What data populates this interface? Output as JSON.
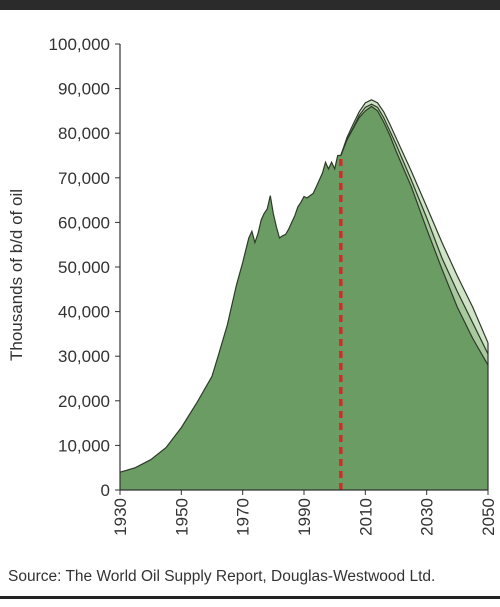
{
  "source_note": "Source: The World Oil Supply Report, Douglas-Westwood Ltd.",
  "colors": {
    "base_area": "#6a9c63",
    "upper_scenario": "#cfe3c6",
    "mid_scenario": "#a8c99d",
    "outline": "#2f3a2a",
    "dashed_marker": "#d42a2a",
    "axis": "#333333"
  },
  "chart_data": {
    "type": "area",
    "title": "",
    "xlabel": "",
    "ylabel": "Thousands of b/d of oil",
    "xlim": [
      1930,
      2050
    ],
    "ylim": [
      0,
      100000
    ],
    "x_ticks": [
      "1930",
      "1950",
      "1970",
      "1990",
      "2010",
      "2030",
      "2050"
    ],
    "y_ticks": [
      "0",
      "10,000",
      "20,000",
      "30,000",
      "40,000",
      "50,000",
      "60,000",
      "70,000",
      "80,000",
      "90,000",
      "100,000"
    ],
    "grid": false,
    "marker_line": {
      "x": 2002,
      "style": "dashed"
    },
    "series": [
      {
        "x": [
          1930,
          1935,
          1940,
          1945,
          1950,
          1955,
          1960,
          1962,
          1965,
          1968,
          1970,
          1972,
          1973,
          1974,
          1975,
          1976,
          1977,
          1978,
          1979,
          1980,
          1981,
          1982,
          1983,
          1984,
          1985,
          1986,
          1987,
          1988,
          1989,
          1990,
          1991,
          1992,
          1993,
          1994,
          1995,
          1996,
          1997,
          1998,
          1999,
          2000,
          2001,
          2002
        ],
        "values": [
          4000,
          5000,
          6800,
          9500,
          14000,
          19500,
          25500,
          30000,
          37000,
          46000,
          51000,
          56500,
          58000,
          55500,
          57500,
          60500,
          62000,
          63000,
          66000,
          62000,
          59000,
          56500,
          57000,
          57300,
          58500,
          60000,
          61500,
          63500,
          64500,
          65800,
          65500,
          66000,
          66500,
          68000,
          69500,
          71000,
          73500,
          72000,
          73500,
          72000,
          75000,
          75000
        ]
      },
      {
        "x": [
          2002,
          2004,
          2006,
          2008,
          2010,
          2012,
          2014,
          2016,
          2018,
          2020,
          2025,
          2030,
          2035,
          2040,
          2045,
          2050
        ],
        "values": [
          75000,
          78500,
          81000,
          83500,
          85000,
          86000,
          85000,
          82500,
          79500,
          76000,
          68000,
          58500,
          49500,
          41000,
          34000,
          28000
        ]
      },
      {
        "x": [
          2002,
          2004,
          2006,
          2008,
          2010,
          2012,
          2014,
          2016,
          2018,
          2020,
          2025,
          2030,
          2035,
          2040,
          2045,
          2050
        ],
        "values": [
          75000,
          78500,
          81200,
          84000,
          85800,
          86500,
          85800,
          83500,
          80500,
          77500,
          69500,
          61000,
          52000,
          44500,
          37500,
          30500
        ]
      },
      {
        "x": [
          2002,
          2004,
          2006,
          2008,
          2010,
          2012,
          2014,
          2016,
          2018,
          2020,
          2025,
          2030,
          2035,
          2040,
          2045,
          2050
        ],
        "values": [
          75000,
          79000,
          82000,
          84800,
          86800,
          87500,
          86800,
          84800,
          82000,
          79000,
          71500,
          63500,
          55500,
          48000,
          41000,
          33000
        ]
      }
    ]
  }
}
